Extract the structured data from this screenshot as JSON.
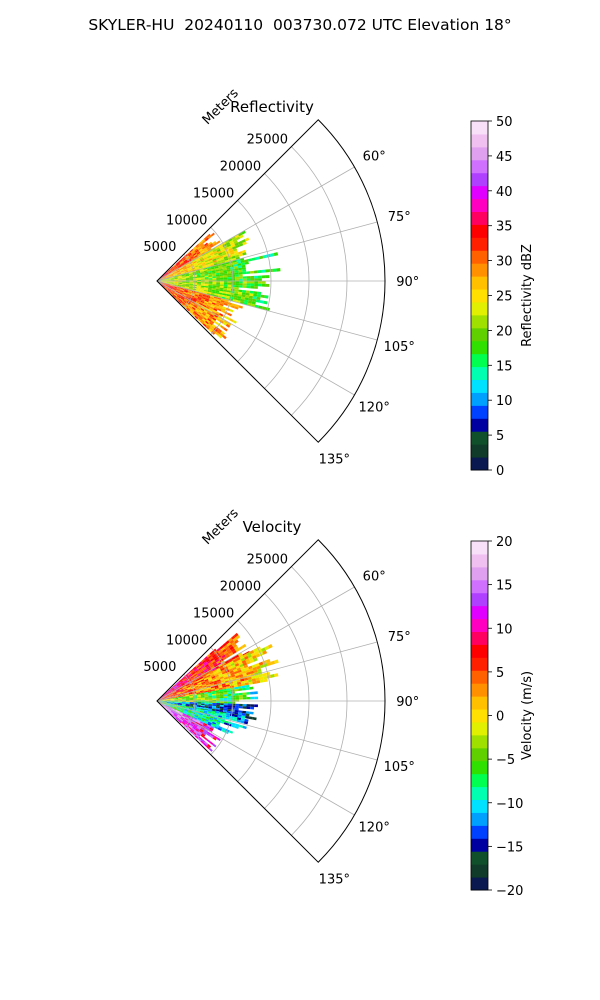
{
  "suptitle": "SKYLER-HU  20240110  003730.072 UTC Elevation 18°",
  "chart_data": [
    {
      "type": "heatmap",
      "projection": "polar-sector",
      "title": "Reflectivity",
      "radial_label": "Meters",
      "radial_ticks": [
        5000,
        10000,
        15000,
        20000,
        25000
      ],
      "radial_tick_labels": [
        "5000",
        "10000",
        "15000",
        "20000",
        "25000"
      ],
      "theta_range_deg": [
        45,
        135
      ],
      "theta_ticks_deg": [
        60,
        75,
        90,
        105,
        120,
        135
      ],
      "theta_tick_labels": [
        "60°",
        "75°",
        "90°",
        "105°",
        "120°",
        "135°"
      ],
      "rmax": 30000,
      "grid": true,
      "colorbar": {
        "label": "Reflectivity dBZ",
        "range": [
          0,
          50
        ],
        "ticks": [
          0,
          5,
          10,
          15,
          20,
          25,
          30,
          35,
          40,
          45,
          50
        ],
        "tick_labels": [
          "0",
          "5",
          "10",
          "15",
          "20",
          "25",
          "30",
          "35",
          "40",
          "45",
          "50"
        ],
        "colors": [
          "#0a1a50",
          "#103a2a",
          "#10502a",
          "#0000a0",
          "#0040ff",
          "#00a0ff",
          "#00e0ff",
          "#00ffb0",
          "#00ff50",
          "#30e000",
          "#60d000",
          "#a0e000",
          "#e0f000",
          "#ffe000",
          "#ffc000",
          "#ff9000",
          "#ff6000",
          "#ff2000",
          "#ff0000",
          "#ff0060",
          "#ff00c0",
          "#e000ff",
          "#b040ff",
          "#d070ff",
          "#e0a0f0",
          "#f0c0f0",
          "#f8e0f8"
        ]
      },
      "data_profile": [
        {
          "az_deg": [
            48,
            60
          ],
          "r_m": [
            0,
            9000
          ],
          "dbz": 34
        },
        {
          "az_deg": [
            60,
            75
          ],
          "r_m": [
            0,
            12000
          ],
          "dbz": 28
        },
        {
          "az_deg": [
            75,
            90
          ],
          "r_m": [
            0,
            15000
          ],
          "dbz": 22
        },
        {
          "az_deg": [
            90,
            105
          ],
          "r_m": [
            0,
            14000
          ],
          "dbz": 24
        },
        {
          "az_deg": [
            105,
            133
          ],
          "r_m": [
            0,
            11000
          ],
          "dbz": 33
        }
      ]
    },
    {
      "type": "heatmap",
      "projection": "polar-sector",
      "title": "Velocity",
      "radial_label": "Meters",
      "radial_ticks": [
        5000,
        10000,
        15000,
        20000,
        25000
      ],
      "radial_tick_labels": [
        "5000",
        "10000",
        "15000",
        "20000",
        "25000"
      ],
      "theta_range_deg": [
        45,
        135
      ],
      "theta_ticks_deg": [
        60,
        75,
        90,
        105,
        120,
        135
      ],
      "theta_tick_labels": [
        "60°",
        "75°",
        "90°",
        "105°",
        "120°",
        "135°"
      ],
      "rmax": 30000,
      "grid": true,
      "colorbar": {
        "label": "Velocity (m/s)",
        "range": [
          -20,
          20
        ],
        "ticks": [
          -20,
          -15,
          -10,
          -5,
          0,
          5,
          10,
          15,
          20
        ],
        "tick_labels": [
          "−20",
          "−15",
          "−10",
          "−5",
          "0",
          "5",
          "10",
          "15",
          "20"
        ],
        "colors": [
          "#0a1a50",
          "#103a2a",
          "#10502a",
          "#0000a0",
          "#0040ff",
          "#00a0ff",
          "#00e0ff",
          "#00ffb0",
          "#00ff50",
          "#30e000",
          "#60d000",
          "#a0e000",
          "#e0f000",
          "#ffe000",
          "#ffc000",
          "#ff9000",
          "#ff6000",
          "#ff2000",
          "#ff0000",
          "#ff0060",
          "#ff00c0",
          "#e000ff",
          "#b040ff",
          "#d070ff",
          "#e0a0f0",
          "#f0c0f0",
          "#f8e0f8"
        ]
      },
      "data_profile": [
        {
          "az_deg": [
            48,
            62
          ],
          "r_m": [
            0,
            13000
          ],
          "vel": 10
        },
        {
          "az_deg": [
            62,
            80
          ],
          "r_m": [
            0,
            15000
          ],
          "vel": 6
        },
        {
          "az_deg": [
            80,
            92
          ],
          "r_m": [
            0,
            13000
          ],
          "vel": -2
        },
        {
          "az_deg": [
            92,
            100
          ],
          "r_m": [
            0,
            12000
          ],
          "vel": -10
        },
        {
          "az_deg": [
            100,
            115
          ],
          "r_m": [
            0,
            11000
          ],
          "vel": -6
        },
        {
          "az_deg": [
            115,
            133
          ],
          "r_m": [
            0,
            9000
          ],
          "vel": 16
        }
      ]
    }
  ]
}
